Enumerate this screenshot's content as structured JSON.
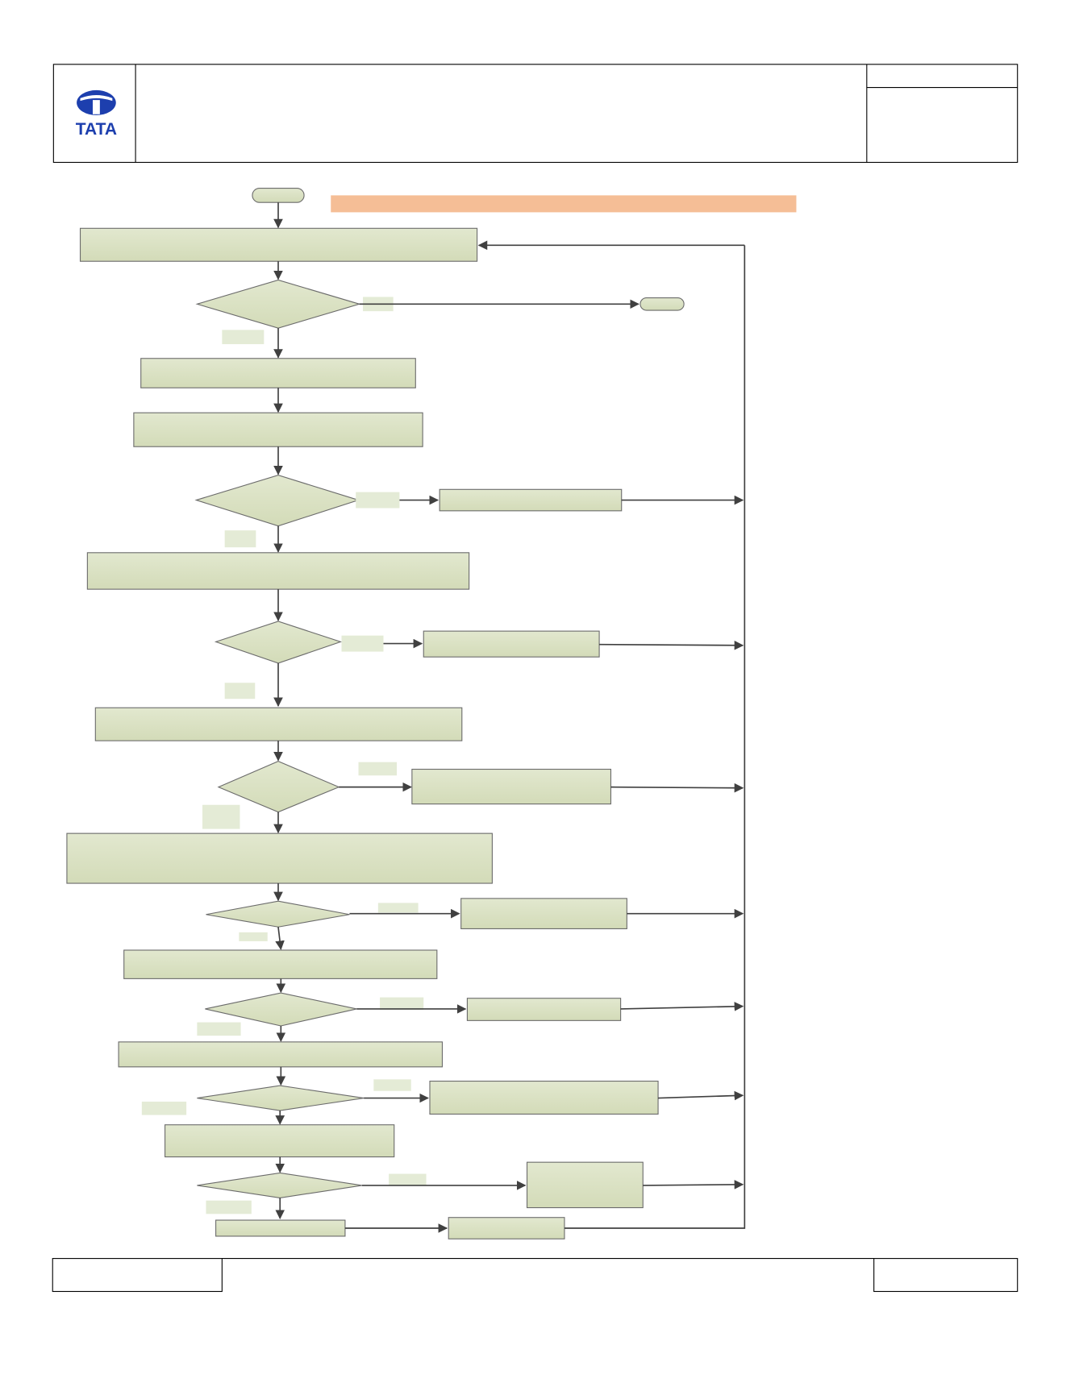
{
  "header": {
    "logo_text": "TATA"
  }
}
